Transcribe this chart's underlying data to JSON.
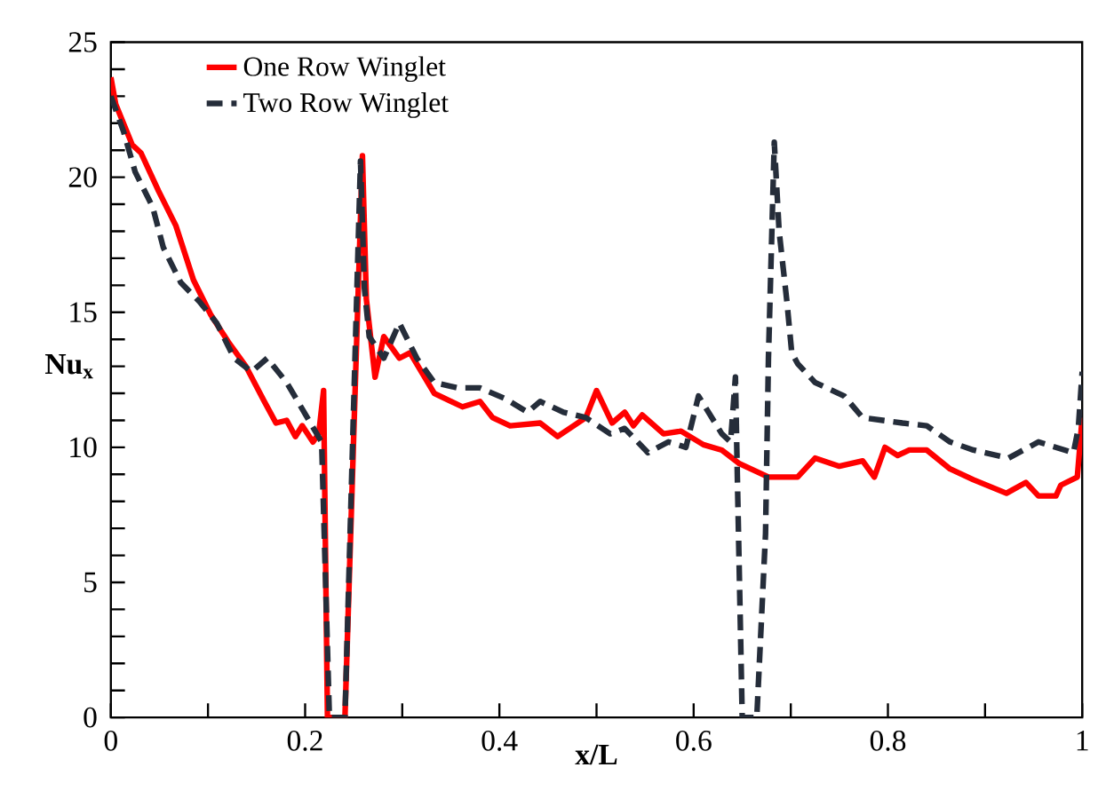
{
  "chart_data": {
    "type": "line",
    "xlabel": "x/L",
    "ylabel": "Nu$_{x}$",
    "xlim": [
      0,
      1
    ],
    "ylim": [
      0,
      25
    ],
    "xticks": [
      0,
      {
        "value": 0.1,
        "label": null
      },
      0.2,
      {
        "value": 0.3,
        "label": null
      },
      0.4,
      {
        "value": 0.5,
        "label": null
      },
      0.6,
      {
        "value": 0.7,
        "label": null
      },
      0.8,
      {
        "value": 0.9,
        "label": null
      },
      1
    ],
    "yticks": [
      0,
      {
        "value": 1,
        "label": null
      },
      {
        "value": 2,
        "label": null
      },
      {
        "value": 3,
        "label": null
      },
      {
        "value": 4,
        "label": null
      },
      5,
      {
        "value": 6,
        "label": null
      },
      {
        "value": 7,
        "label": null
      },
      {
        "value": 8,
        "label": null
      },
      {
        "value": 9,
        "label": null
      },
      10,
      {
        "value": 11,
        "label": null
      },
      {
        "value": 12,
        "label": null
      },
      {
        "value": 13,
        "label": null
      },
      {
        "value": 14,
        "label": null
      },
      15,
      {
        "value": 16,
        "label": null
      },
      {
        "value": 17,
        "label": null
      },
      {
        "value": 18,
        "label": null
      },
      {
        "value": 19,
        "label": null
      },
      20,
      {
        "value": 21,
        "label": null
      },
      {
        "value": 22,
        "label": null
      },
      {
        "value": 23,
        "label": null
      },
      {
        "value": 24,
        "label": null
      },
      25
    ],
    "grid": false,
    "legend": "top left",
    "marker": "none",
    "series": [
      {
        "name": "One Row Winglet",
        "color": "#ff0000",
        "line_style": "solid",
        "x": [
          0,
          0.005,
          0.022,
          0.031,
          0.049,
          0.067,
          0.085,
          0.103,
          0.121,
          0.139,
          0.158,
          0.17,
          0.181,
          0.19,
          0.197,
          0.208,
          0.214,
          0.219,
          0.223,
          0.241,
          0.259,
          0.263,
          0.272,
          0.281,
          0.297,
          0.308,
          0.333,
          0.362,
          0.38,
          0.393,
          0.411,
          0.442,
          0.46,
          0.489,
          0.5,
          0.516,
          0.529,
          0.538,
          0.547,
          0.569,
          0.587,
          0.61,
          0.629,
          0.647,
          0.677,
          0.707,
          0.725,
          0.75,
          0.774,
          0.786,
          0.797,
          0.81,
          0.822,
          0.84,
          0.864,
          0.888,
          0.922,
          0.942,
          0.955,
          0.973,
          0.978,
          0.995,
          1.0
        ],
        "values": [
          23.7,
          22.7,
          21.2,
          20.9,
          19.5,
          18.2,
          16.2,
          14.9,
          13.9,
          13.0,
          11.7,
          10.9,
          11.0,
          10.4,
          10.8,
          10.2,
          10.5,
          12.1,
          0,
          0,
          20.8,
          15.5,
          12.6,
          14.1,
          13.3,
          13.5,
          12.0,
          11.5,
          11.7,
          11.1,
          10.8,
          10.9,
          10.4,
          11.1,
          12.1,
          10.9,
          11.3,
          10.8,
          11.2,
          10.5,
          10.6,
          10.1,
          9.9,
          9.4,
          8.9,
          8.9,
          9.6,
          9.3,
          9.5,
          8.9,
          10.0,
          9.7,
          9.9,
          9.9,
          9.2,
          8.8,
          8.3,
          8.7,
          8.2,
          8.2,
          8.6,
          8.9,
          11.1
        ]
      },
      {
        "name": "Two Row Winglet",
        "color": "#252d3a",
        "line_style": "dashed",
        "x": [
          0,
          0.013,
          0.025,
          0.043,
          0.054,
          0.072,
          0.091,
          0.109,
          0.127,
          0.145,
          0.161,
          0.181,
          0.199,
          0.212,
          0.217,
          0.225,
          0.241,
          0.257,
          0.261,
          0.266,
          0.281,
          0.297,
          0.315,
          0.333,
          0.357,
          0.38,
          0.406,
          0.429,
          0.442,
          0.466,
          0.489,
          0.514,
          0.529,
          0.553,
          0.574,
          0.592,
          0.605,
          0.629,
          0.638,
          0.643,
          0.645,
          0.65,
          0.665,
          0.674,
          0.677,
          0.683,
          0.688,
          0.696,
          0.701,
          0.707,
          0.725,
          0.755,
          0.774,
          0.815,
          0.84,
          0.864,
          0.888,
          0.924,
          0.955,
          0.991,
          0.996,
          1.0
        ],
        "values": [
          23.0,
          21.7,
          20.2,
          18.9,
          17.4,
          16.1,
          15.4,
          14.6,
          13.3,
          12.8,
          13.3,
          12.4,
          11.3,
          10.5,
          10.2,
          0,
          0,
          20.6,
          15.9,
          14.1,
          13.3,
          14.6,
          13.3,
          12.4,
          12.2,
          12.2,
          11.8,
          11.3,
          11.7,
          11.3,
          11.1,
          10.5,
          10.7,
          9.8,
          10.2,
          10.0,
          11.9,
          10.5,
          10.2,
          12.6,
          8.9,
          0,
          0,
          6.8,
          13.3,
          21.3,
          18.0,
          15.4,
          13.5,
          13.1,
          12.4,
          11.9,
          11.1,
          10.9,
          10.8,
          10.2,
          9.9,
          9.6,
          10.2,
          9.8,
          10.7,
          12.8
        ]
      }
    ]
  }
}
